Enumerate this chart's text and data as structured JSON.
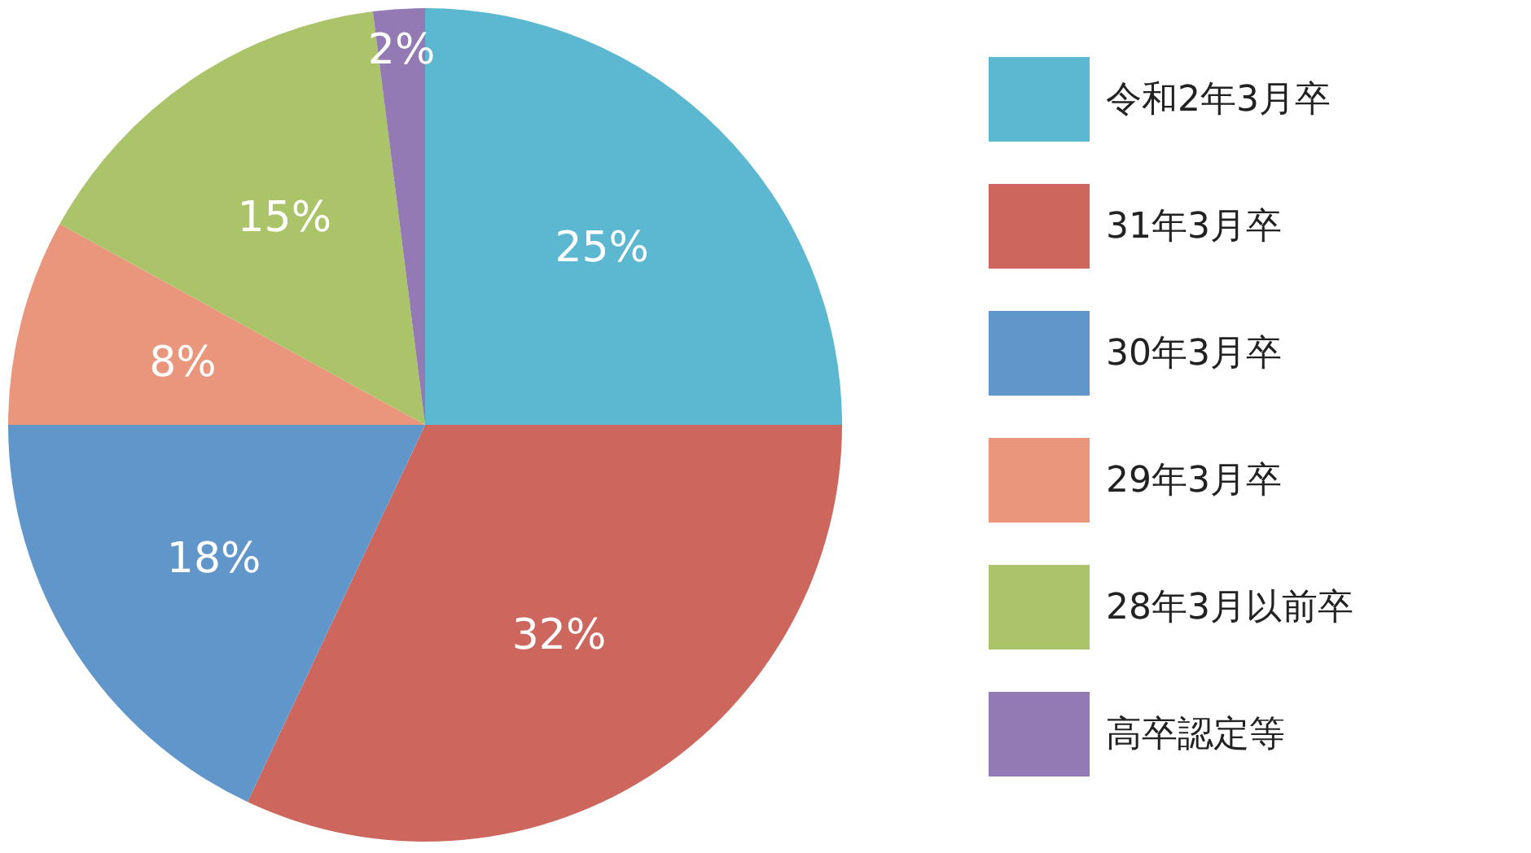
{
  "chart_data": {
    "type": "pie",
    "categories": [
      "令和2年3月卒",
      "31年3月卒",
      "30年3月卒",
      "29年3月卒",
      "28年3月以前卒",
      "高卒認定等"
    ],
    "values": [
      25,
      32,
      18,
      8,
      15,
      2
    ],
    "colors": [
      "#5bb8d0",
      "#cd675e",
      "#6096c9",
      "#e9967c",
      "#abc46a",
      "#947ab4"
    ],
    "value_labels": [
      "25%",
      "32%",
      "18%",
      "8%",
      "15%",
      "2%"
    ],
    "legend": "right"
  }
}
